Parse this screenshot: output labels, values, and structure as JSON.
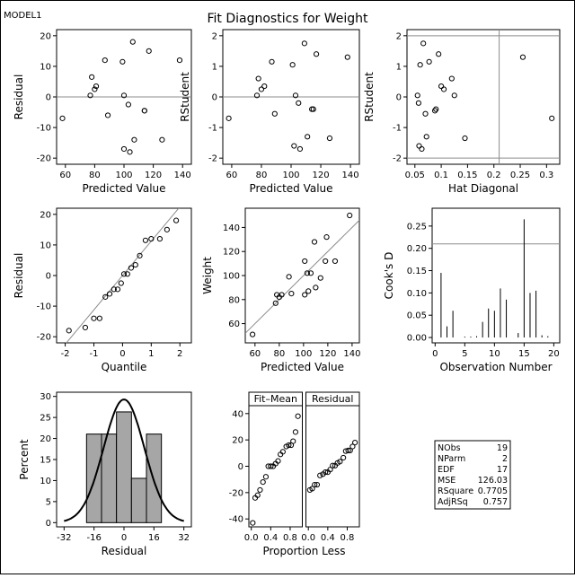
{
  "model_label": "MODEL1",
  "title": "Fit Diagnostics for Weight",
  "chart_data": [
    {
      "id": "resid_vs_pred",
      "type": "scatter",
      "xlabel": "Predicted Value",
      "ylabel": "Residual",
      "xlim": [
        54,
        146
      ],
      "ylim": [
        -22,
        22
      ],
      "xticks": [
        60,
        80,
        100,
        120,
        140
      ],
      "yticks": [
        -20,
        -10,
        0,
        10,
        20
      ],
      "refline_y": 0,
      "points": [
        [
          58,
          -7
        ],
        [
          77,
          0.5
        ],
        [
          78,
          6.5
        ],
        [
          80,
          2.5
        ],
        [
          81,
          3.5
        ],
        [
          87,
          12
        ],
        [
          89,
          -6
        ],
        [
          99,
          11.5
        ],
        [
          100,
          0.5
        ],
        [
          100,
          -17
        ],
        [
          103,
          -2.5
        ],
        [
          104,
          -18
        ],
        [
          106,
          18
        ],
        [
          107,
          -14
        ],
        [
          114,
          -4.5
        ],
        [
          114,
          -4.5
        ],
        [
          117,
          15
        ],
        [
          126,
          -14
        ],
        [
          138,
          12
        ]
      ]
    },
    {
      "id": "rstudent_vs_pred",
      "type": "scatter",
      "xlabel": "Predicted Value",
      "ylabel": "RStudent",
      "xlim": [
        54,
        146
      ],
      "ylim": [
        -2.2,
        2.2
      ],
      "xticks": [
        60,
        80,
        100,
        120,
        140
      ],
      "yticks": [
        -2,
        -1,
        0,
        1,
        2
      ],
      "refline_y": 0,
      "points": [
        [
          58,
          -0.7
        ],
        [
          77,
          0.05
        ],
        [
          78,
          0.6
        ],
        [
          80,
          0.25
        ],
        [
          82,
          0.35
        ],
        [
          87,
          1.15
        ],
        [
          89,
          -0.55
        ],
        [
          101,
          1.05
        ],
        [
          103,
          0.05
        ],
        [
          102,
          -1.6
        ],
        [
          105,
          -0.2
        ],
        [
          106,
          -1.7
        ],
        [
          109,
          1.75
        ],
        [
          111,
          -1.3
        ],
        [
          114,
          -0.4
        ],
        [
          115,
          -0.4
        ],
        [
          117,
          1.4
        ],
        [
          126,
          -1.35
        ],
        [
          138,
          1.3
        ]
      ]
    },
    {
      "id": "rstudent_vs_hat",
      "type": "scatter",
      "xlabel": "Hat Diagonal",
      "ylabel": "RStudent",
      "xlim": [
        0.035,
        0.325
      ],
      "ylim": [
        -2.2,
        2.2
      ],
      "xticks": [
        0.05,
        0.1,
        0.15,
        0.2,
        0.25,
        0.3
      ],
      "xticklabels": [
        "0.05",
        "0.1",
        "0.15",
        "0.2",
        "0.25",
        "0.3"
      ],
      "yticks": [
        -2,
        -1,
        0,
        1,
        2
      ],
      "refline_y": 2,
      "refline_y2": -2,
      "refline_x": 0.21,
      "points": [
        [
          0.055,
          0.05
        ],
        [
          0.057,
          -0.2
        ],
        [
          0.058,
          -1.6
        ],
        [
          0.06,
          1.05
        ],
        [
          0.063,
          -1.7
        ],
        [
          0.066,
          1.75
        ],
        [
          0.07,
          -0.55
        ],
        [
          0.072,
          -1.3
        ],
        [
          0.077,
          1.15
        ],
        [
          0.088,
          -0.45
        ],
        [
          0.095,
          1.4
        ],
        [
          0.09,
          -0.4
        ],
        [
          0.1,
          0.35
        ],
        [
          0.105,
          0.25
        ],
        [
          0.12,
          0.6
        ],
        [
          0.125,
          0.05
        ],
        [
          0.145,
          -1.35
        ],
        [
          0.255,
          1.3
        ],
        [
          0.31,
          -0.7
        ]
      ]
    },
    {
      "id": "qq",
      "type": "scatter",
      "xlabel": "Quantile",
      "ylabel": "Residual",
      "xlim": [
        -2.3,
        2.4
      ],
      "ylim": [
        -22,
        22
      ],
      "xticks": [
        -2,
        -1,
        0,
        1,
        2
      ],
      "yticks": [
        -20,
        -10,
        0,
        10,
        20
      ],
      "refline_slope": 11.23,
      "refline_intercept": 0,
      "points": [
        [
          -1.87,
          -18
        ],
        [
          -1.3,
          -17
        ],
        [
          -1.0,
          -14
        ],
        [
          -0.8,
          -14
        ],
        [
          -0.6,
          -7
        ],
        [
          -0.45,
          -6
        ],
        [
          -0.3,
          -4.5
        ],
        [
          -0.17,
          -4.5
        ],
        [
          -0.05,
          -2.5
        ],
        [
          0.05,
          0.5
        ],
        [
          0.17,
          0.5
        ],
        [
          0.3,
          2.5
        ],
        [
          0.45,
          3.5
        ],
        [
          0.6,
          6.5
        ],
        [
          0.8,
          11.5
        ],
        [
          1.0,
          12
        ],
        [
          1.3,
          12
        ],
        [
          1.55,
          15
        ],
        [
          1.87,
          18
        ]
      ]
    },
    {
      "id": "obs_vs_pred",
      "type": "scatter",
      "xlabel": "Predicted Value",
      "ylabel": "Weight",
      "xlim": [
        52,
        146
      ],
      "ylim": [
        44,
        156
      ],
      "xticks": [
        60,
        80,
        100,
        120,
        140
      ],
      "yticks": [
        60,
        80,
        100,
        120,
        140
      ],
      "refline_slope": 1,
      "refline_intercept": 0,
      "points": [
        [
          58,
          51
        ],
        [
          77,
          77
        ],
        [
          78,
          84
        ],
        [
          80,
          82
        ],
        [
          82,
          84
        ],
        [
          88,
          99
        ],
        [
          90,
          85
        ],
        [
          101,
          112
        ],
        [
          101,
          84
        ],
        [
          103,
          102
        ],
        [
          104,
          87
        ],
        [
          106,
          102
        ],
        [
          109,
          128
        ],
        [
          110,
          90
        ],
        [
          114,
          98
        ],
        [
          118,
          112
        ],
        [
          119,
          132
        ],
        [
          126,
          112
        ],
        [
          138,
          150
        ]
      ]
    },
    {
      "id": "cooks_d",
      "type": "bar",
      "xlabel": "Observation Number",
      "ylabel": "Cook's D",
      "xlim": [
        -0.5,
        21
      ],
      "ylim": [
        -0.012,
        0.29
      ],
      "xticks": [
        0,
        5,
        10,
        15,
        20
      ],
      "yticks": [
        0,
        0.05,
        0.1,
        0.15,
        0.2,
        0.25
      ],
      "yticklabels": [
        "0.00",
        "0.05",
        "0.10",
        "0.15",
        "0.20",
        "0.25"
      ],
      "refline_y": 0.21,
      "x": [
        1,
        2,
        3,
        4,
        5,
        6,
        7,
        8,
        9,
        10,
        11,
        12,
        13,
        14,
        15,
        16,
        17,
        18,
        19
      ],
      "values": [
        0.145,
        0.025,
        0.06,
        0.0,
        0.002,
        0.002,
        0.003,
        0.035,
        0.065,
        0.06,
        0.11,
        0.085,
        0.0,
        0.01,
        0.265,
        0.1,
        0.105,
        0.005,
        0.003
      ]
    },
    {
      "id": "resid_hist",
      "type": "bar",
      "xlabel": "Residual",
      "ylabel": "Percent",
      "xlim": [
        -36,
        36
      ],
      "ylim": [
        -1,
        31
      ],
      "xticks": [
        -32,
        -16,
        0,
        16,
        32
      ],
      "yticks": [
        0,
        5,
        10,
        15,
        20,
        25,
        30
      ],
      "bins": [
        [
          -20,
          -12
        ],
        [
          -12,
          -4
        ],
        [
          -4,
          4
        ],
        [
          4,
          12
        ],
        [
          12,
          20
        ]
      ],
      "values": [
        21.05,
        21.05,
        26.32,
        10.53,
        21.05
      ],
      "normal_mean": 0,
      "normal_sd": 10.9
    },
    {
      "id": "rf_plot",
      "type": "scatter",
      "xlabel": "Proportion Less",
      "ylabel": "",
      "panels": [
        "Fit–Mean",
        "Residual"
      ],
      "xlim": [
        -0.05,
        1.05
      ],
      "ylim": [
        -46,
        46
      ],
      "xticks": [
        0,
        0.4,
        0.8
      ],
      "xticklabels": [
        "0.0",
        "0.4",
        "0.8"
      ],
      "yticks": [
        -40,
        -20,
        0,
        20,
        40
      ],
      "fit_mean": [
        [
          0.03,
          -43
        ],
        [
          0.08,
          -24
        ],
        [
          0.13,
          -22
        ],
        [
          0.18,
          -18
        ],
        [
          0.24,
          -12
        ],
        [
          0.3,
          -8
        ],
        [
          0.35,
          0
        ],
        [
          0.4,
          0
        ],
        [
          0.45,
          0
        ],
        [
          0.5,
          2
        ],
        [
          0.55,
          4
        ],
        [
          0.6,
          9
        ],
        [
          0.65,
          11
        ],
        [
          0.72,
          15
        ],
        [
          0.77,
          16
        ],
        [
          0.82,
          16
        ],
        [
          0.86,
          19
        ],
        [
          0.91,
          26
        ],
        [
          0.96,
          38
        ]
      ],
      "residual": [
        [
          0.03,
          -18
        ],
        [
          0.08,
          -17
        ],
        [
          0.13,
          -14
        ],
        [
          0.18,
          -14
        ],
        [
          0.24,
          -7
        ],
        [
          0.3,
          -6
        ],
        [
          0.35,
          -4.5
        ],
        [
          0.4,
          -4.5
        ],
        [
          0.45,
          -2.5
        ],
        [
          0.5,
          0.5
        ],
        [
          0.55,
          0.5
        ],
        [
          0.6,
          2.5
        ],
        [
          0.65,
          3.5
        ],
        [
          0.72,
          6.5
        ],
        [
          0.77,
          11.5
        ],
        [
          0.82,
          12
        ],
        [
          0.86,
          12
        ],
        [
          0.91,
          15
        ],
        [
          0.96,
          18
        ]
      ]
    }
  ],
  "fit_stats": [
    {
      "label": "NObs",
      "value": "19"
    },
    {
      "label": "NParm",
      "value": "2"
    },
    {
      "label": "EDF",
      "value": "17"
    },
    {
      "label": "MSE",
      "value": "126.03"
    },
    {
      "label": "RSquare",
      "value": "0.7705"
    },
    {
      "label": "AdjRSq",
      "value": "0.757"
    }
  ],
  "colors": {
    "marker": "#000000",
    "refline": "#8c8c8c",
    "histfill": "#a6a6a6",
    "curve": "#000000"
  }
}
